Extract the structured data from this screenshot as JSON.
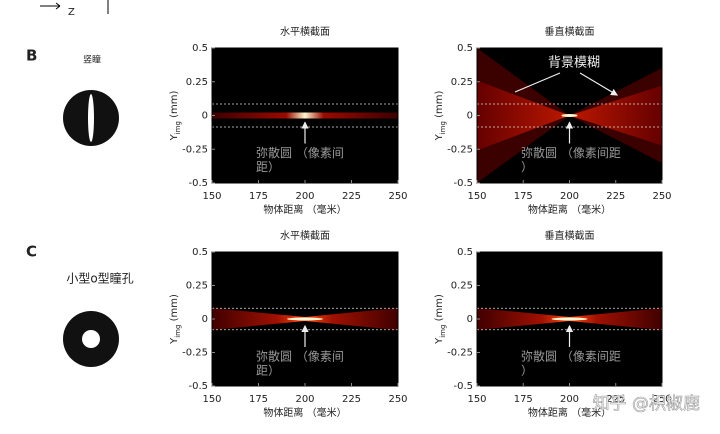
{
  "page_labels": {
    "axis_z": "Z",
    "panel_b": "B",
    "panel_c": "C",
    "pupil_b": "竖瞳",
    "pupil_c": "小型o型瞳孔",
    "background_blur": "背景模糊",
    "watermark": "知乎 @枳椒鹿"
  },
  "chart_data": [
    {
      "type": "heatmap",
      "title": "水平横截面",
      "xlabel": "物体距离 （毫米）",
      "ylabel": "Y",
      "ylabel_sub": "img",
      "ylabel_unit": " (mm)",
      "xlim": [
        150,
        250
      ],
      "ylim": [
        -0.5,
        0.5
      ],
      "xticks": [
        150,
        175,
        200,
        225,
        250
      ],
      "yticks": [
        0.5,
        0.25,
        0,
        -0.25,
        -0.5
      ],
      "guides": [
        0.085,
        -0.085
      ],
      "focus": 200,
      "blur": "narrow",
      "annotation": [
        "弥散圆 （像素间",
        "距）"
      ]
    },
    {
      "type": "heatmap",
      "title": "垂直横截面",
      "xlabel": "物体距离 （毫米）",
      "ylabel": "Y",
      "ylabel_sub": "img",
      "ylabel_unit": " (mm)",
      "xlim": [
        150,
        250
      ],
      "ylim": [
        -0.5,
        0.5
      ],
      "xticks": [
        150,
        175,
        200,
        225,
        250
      ],
      "yticks": [
        0.5,
        0.25,
        0,
        -0.25,
        -0.5
      ],
      "guides": [
        0.085,
        -0.085
      ],
      "focus": 200,
      "blur": "cone",
      "annotation": [
        "弥散圆 （像素间距",
        "）"
      ]
    },
    {
      "type": "heatmap",
      "title": "水平横截面",
      "xlabel": "物体距离 （毫米）",
      "ylabel": "Y",
      "ylabel_sub": "img",
      "ylabel_unit": " (mm)",
      "xlim": [
        150,
        250
      ],
      "ylim": [
        -0.5,
        0.5
      ],
      "xticks": [
        150,
        175,
        200,
        225,
        250
      ],
      "yticks": [
        0.5,
        0.25,
        0,
        -0.25,
        -0.5
      ],
      "guides": [
        0.08,
        -0.08
      ],
      "focus": 200,
      "blur": "wide",
      "annotation": [
        "弥散圆 （像素间",
        "距）"
      ]
    },
    {
      "type": "heatmap",
      "title": "垂直横截面",
      "xlabel": "物体距离 （毫米）",
      "ylabel": "Y",
      "ylabel_sub": "img",
      "ylabel_unit": " (mm)",
      "xlim": [
        150,
        250
      ],
      "ylim": [
        -0.5,
        0.5
      ],
      "xticks": [
        150,
        175,
        200,
        225,
        250
      ],
      "yticks": [
        0.5,
        0.25,
        0,
        -0.25,
        -0.5
      ],
      "guides": [
        0.08,
        -0.08
      ],
      "focus": 200,
      "blur": "wide",
      "annotation": [
        "弥散圆 （像素间距",
        "）"
      ]
    }
  ]
}
